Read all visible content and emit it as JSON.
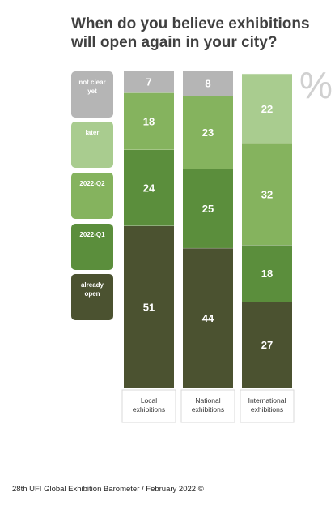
{
  "title_lines": [
    "When do you believe exhibitions",
    "will open again in your city?"
  ],
  "unit_symbol": "%",
  "footer": "28th UFI Global Exhibition Barometer / February 2022 ©",
  "legend": [
    {
      "label_lines": [
        "not clear",
        "yet"
      ],
      "color": "#b5b5b5"
    },
    {
      "label_lines": [
        "later"
      ],
      "color": "#a9cc8f"
    },
    {
      "label_lines": [
        "2022-Q2"
      ],
      "color": "#85b35e"
    },
    {
      "label_lines": [
        "2022-Q1"
      ],
      "color": "#5b8e3c"
    },
    {
      "label_lines": [
        "already",
        "open"
      ],
      "color": "#4b5230"
    }
  ],
  "chart_data": {
    "type": "bar",
    "stacked": true,
    "normalized_percent": true,
    "categories": [
      [
        "Local",
        "exhibitions"
      ],
      [
        "National",
        "exhibitions"
      ],
      [
        "International",
        "exhibitions"
      ]
    ],
    "series": [
      {
        "name": "already open",
        "color": "#4b5230",
        "values": [
          51,
          44,
          27
        ]
      },
      {
        "name": "2022-Q1",
        "color": "#5b8e3c",
        "values": [
          24,
          25,
          18
        ]
      },
      {
        "name": "2022-Q2",
        "color": "#85b35e",
        "values": [
          18,
          23,
          32
        ]
      },
      {
        "name": "later",
        "color": "#a9cc8f",
        "values": [
          null,
          null,
          22
        ]
      },
      {
        "name": "not clear yet",
        "color": "#b5b5b5",
        "values": [
          7,
          8,
          null
        ]
      }
    ],
    "ylim": [
      0,
      100
    ]
  }
}
